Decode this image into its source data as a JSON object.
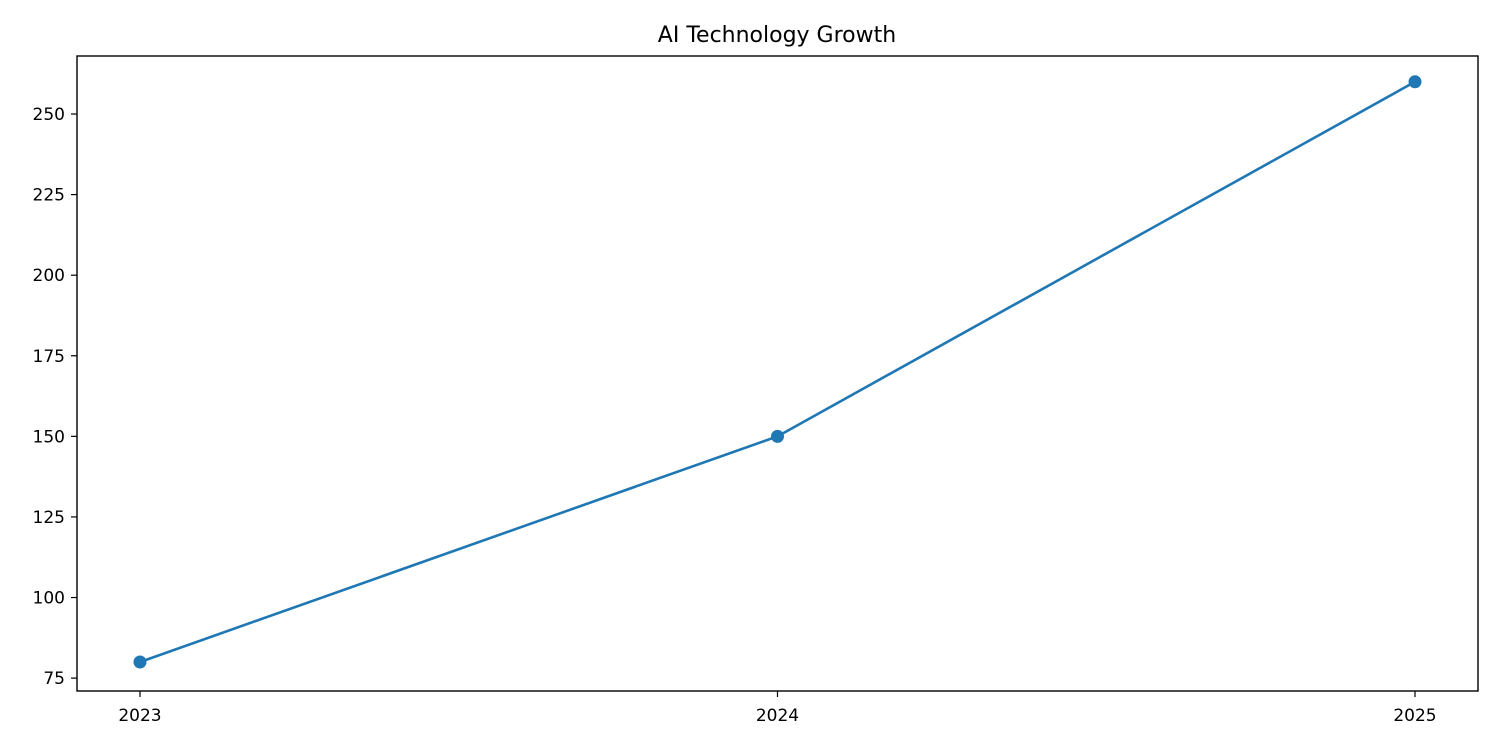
{
  "chart_data": {
    "type": "line",
    "title": "AI Technology Growth",
    "xlabel": "",
    "ylabel": "",
    "x": [
      "2023",
      "2024",
      "2025"
    ],
    "series": [
      {
        "values": [
          80,
          150,
          260
        ],
        "color": "#1f77b4",
        "marker": "circle"
      }
    ],
    "ylim": [
      71,
      268
    ],
    "yticks": [
      75,
      100,
      125,
      150,
      175,
      200,
      225,
      250
    ],
    "grid": false,
    "legend": "none"
  }
}
